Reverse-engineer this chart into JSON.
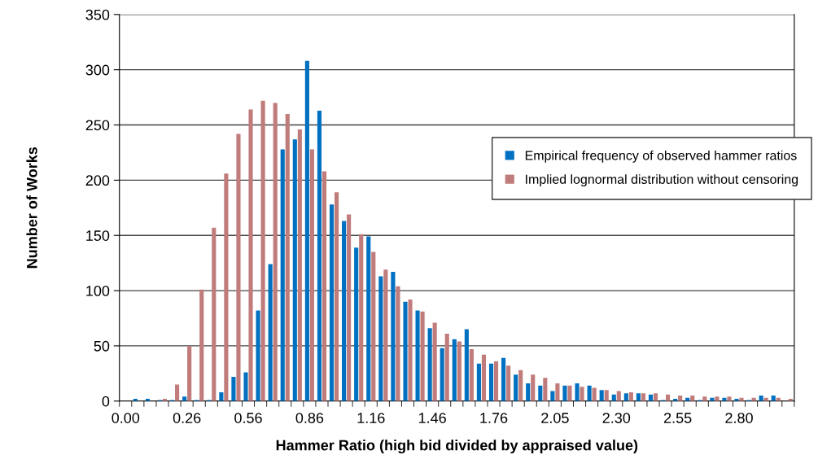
{
  "chart_data": {
    "type": "bar",
    "xlabel": "Hammer Ratio (high bid divided by appraised value)",
    "ylabel": "Number of Works",
    "categories": [
      "0.00",
      null,
      null,
      null,
      null,
      "0.26",
      null,
      null,
      null,
      null,
      "0.56",
      null,
      null,
      null,
      null,
      "0.86",
      null,
      null,
      null,
      null,
      "1.16",
      null,
      null,
      null,
      null,
      "1.46",
      null,
      null,
      null,
      null,
      "1.76",
      null,
      null,
      null,
      null,
      "2.05",
      null,
      null,
      null,
      null,
      "2.30",
      null,
      null,
      null,
      null,
      "2.55",
      null,
      null,
      null,
      null,
      "2.80",
      null,
      null,
      null,
      null
    ],
    "series": [
      {
        "name": "Empirical frequency of observed hammer ratios",
        "color": "#0070c0",
        "values": [
          0,
          2,
          2,
          1,
          1,
          4,
          1,
          1,
          8,
          22,
          26,
          82,
          124,
          228,
          237,
          308,
          263,
          178,
          163,
          139,
          149,
          113,
          117,
          90,
          82,
          66,
          48,
          56,
          65,
          34,
          34,
          39,
          24,
          16,
          14,
          9,
          14,
          16,
          14,
          10,
          6,
          7,
          7,
          6,
          1,
          2,
          3,
          1,
          3,
          3,
          2,
          1,
          5,
          5,
          0
        ]
      },
      {
        "name": "Implied lognormal distribution without censoring",
        "color": "#c07b7b",
        "values": [
          0,
          0,
          0,
          2,
          15,
          50,
          101,
          157,
          206,
          242,
          264,
          272,
          270,
          260,
          246,
          228,
          208,
          189,
          169,
          151,
          135,
          119,
          104,
          92,
          81,
          71,
          61,
          54,
          47,
          42,
          36,
          32,
          28,
          24,
          21,
          16,
          14,
          13,
          12,
          10,
          9,
          8,
          7,
          7,
          6,
          5,
          5,
          4,
          4,
          4,
          3,
          3,
          3,
          3,
          2
        ]
      }
    ],
    "ylim": [
      0,
      350
    ],
    "yticks": [
      0,
      50,
      100,
      150,
      200,
      250,
      300,
      350
    ],
    "grid": "y",
    "legend": "right"
  }
}
